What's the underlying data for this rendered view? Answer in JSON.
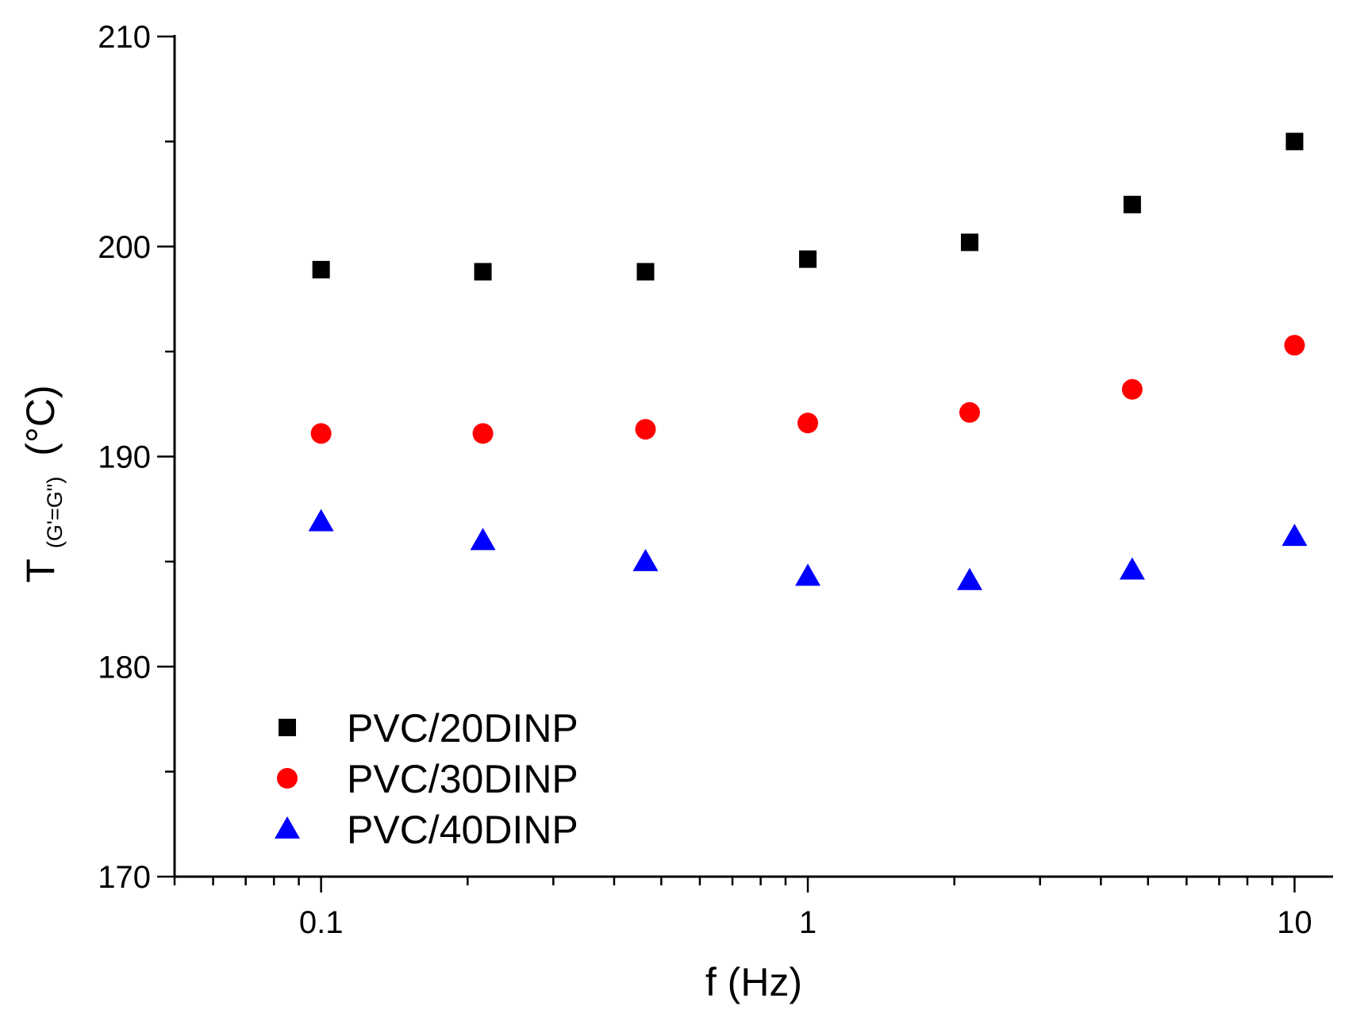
{
  "chart_data": {
    "type": "scatter",
    "title": "",
    "xlabel": "f (Hz)",
    "ylabel_main": "T",
    "ylabel_subscript": "(G'=G\")",
    "ylabel_unit": "(°C)",
    "xscale": "log",
    "xlim": [
      0.05,
      12
    ],
    "ylim": [
      170,
      210
    ],
    "x_tick_values": [
      0.1,
      1,
      10
    ],
    "x_tick_labels": [
      "0.1",
      "1",
      "10"
    ],
    "y_tick_values": [
      170,
      180,
      190,
      200,
      210
    ],
    "y_tick_labels": [
      "170",
      "180",
      "190",
      "200",
      "210"
    ],
    "y_minor_step": 5,
    "grid": false,
    "legend_position": "bottom-left",
    "x": [
      0.1,
      0.215,
      0.464,
      1,
      2.15,
      4.64,
      10
    ],
    "series": [
      {
        "name": "PVC/20DINP",
        "marker": "square",
        "color": "#000000",
        "values": [
          198.9,
          198.8,
          198.8,
          199.4,
          200.2,
          202.0,
          205.0
        ]
      },
      {
        "name": "PVC/30DINP",
        "marker": "circle",
        "color": "#ff0000",
        "values": [
          191.1,
          191.1,
          191.3,
          191.6,
          192.1,
          193.2,
          195.3
        ]
      },
      {
        "name": "PVC/40DINP",
        "marker": "triangle",
        "color": "#0000ff",
        "values": [
          186.9,
          186.0,
          185.0,
          184.3,
          184.1,
          184.6,
          186.2
        ]
      }
    ]
  }
}
